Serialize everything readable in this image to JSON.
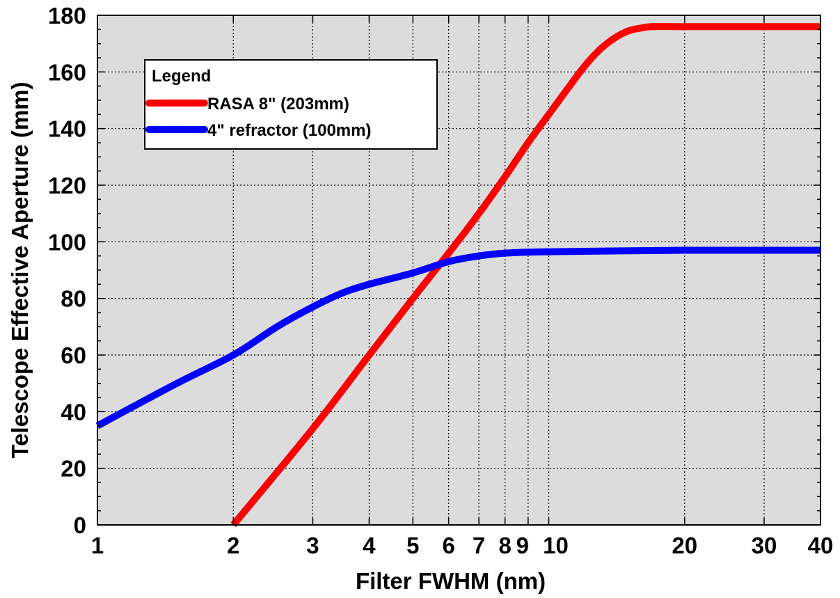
{
  "chart_data": {
    "type": "line",
    "title": "",
    "xlabel": "Filter FWHM (nm)",
    "ylabel": "Telescope Effective Aperture (mm)",
    "xscale": "log",
    "xlim": [
      1,
      40
    ],
    "ylim": [
      0,
      180
    ],
    "x_tick_values": [
      1,
      2,
      3,
      4,
      5,
      6,
      7,
      8,
      9,
      10,
      20,
      30,
      40
    ],
    "x_tick_labels": [
      "1",
      "2",
      "3",
      "4",
      "5",
      "6",
      "7",
      "8",
      "9",
      "10",
      "20",
      "30",
      "40"
    ],
    "y_tick_values": [
      0,
      20,
      40,
      60,
      80,
      100,
      120,
      140,
      160,
      180
    ],
    "y_tick_labels": [
      "0",
      "20",
      "40",
      "60",
      "80",
      "100",
      "120",
      "140",
      "160",
      "180"
    ],
    "grid": true,
    "background_color": "#dcdcdc",
    "legend": {
      "title": "Legend",
      "placement": "top-left",
      "entries": [
        "RASA 8\" (203mm)",
        "4\" refractor (100mm)"
      ]
    },
    "series": [
      {
        "name": "RASA 8\" (203mm)",
        "color": "#ff0000",
        "x": [
          2.0,
          3.0,
          4.0,
          5.0,
          6.0,
          7.0,
          8.0,
          9.0,
          10.0,
          11.0,
          12.0,
          13.0,
          14.0,
          15.0,
          16.0,
          17.0,
          20.0,
          30.0,
          40.0
        ],
        "y": [
          0,
          34,
          60,
          80,
          96,
          110,
          123,
          135,
          145,
          154,
          162,
          168,
          172,
          174.5,
          175.5,
          176,
          176,
          176,
          176
        ]
      },
      {
        "name": "4\" refractor (100mm)",
        "color": "#0000ff",
        "x": [
          1.0,
          1.5,
          2.0,
          2.5,
          3.0,
          3.5,
          4.0,
          5.0,
          6.0,
          7.0,
          8.0,
          10.0,
          20.0,
          30.0,
          40.0
        ],
        "y": [
          35,
          50,
          60,
          70,
          77,
          82,
          85,
          89,
          93,
          95,
          96,
          96.5,
          97,
          97,
          97
        ]
      }
    ]
  }
}
